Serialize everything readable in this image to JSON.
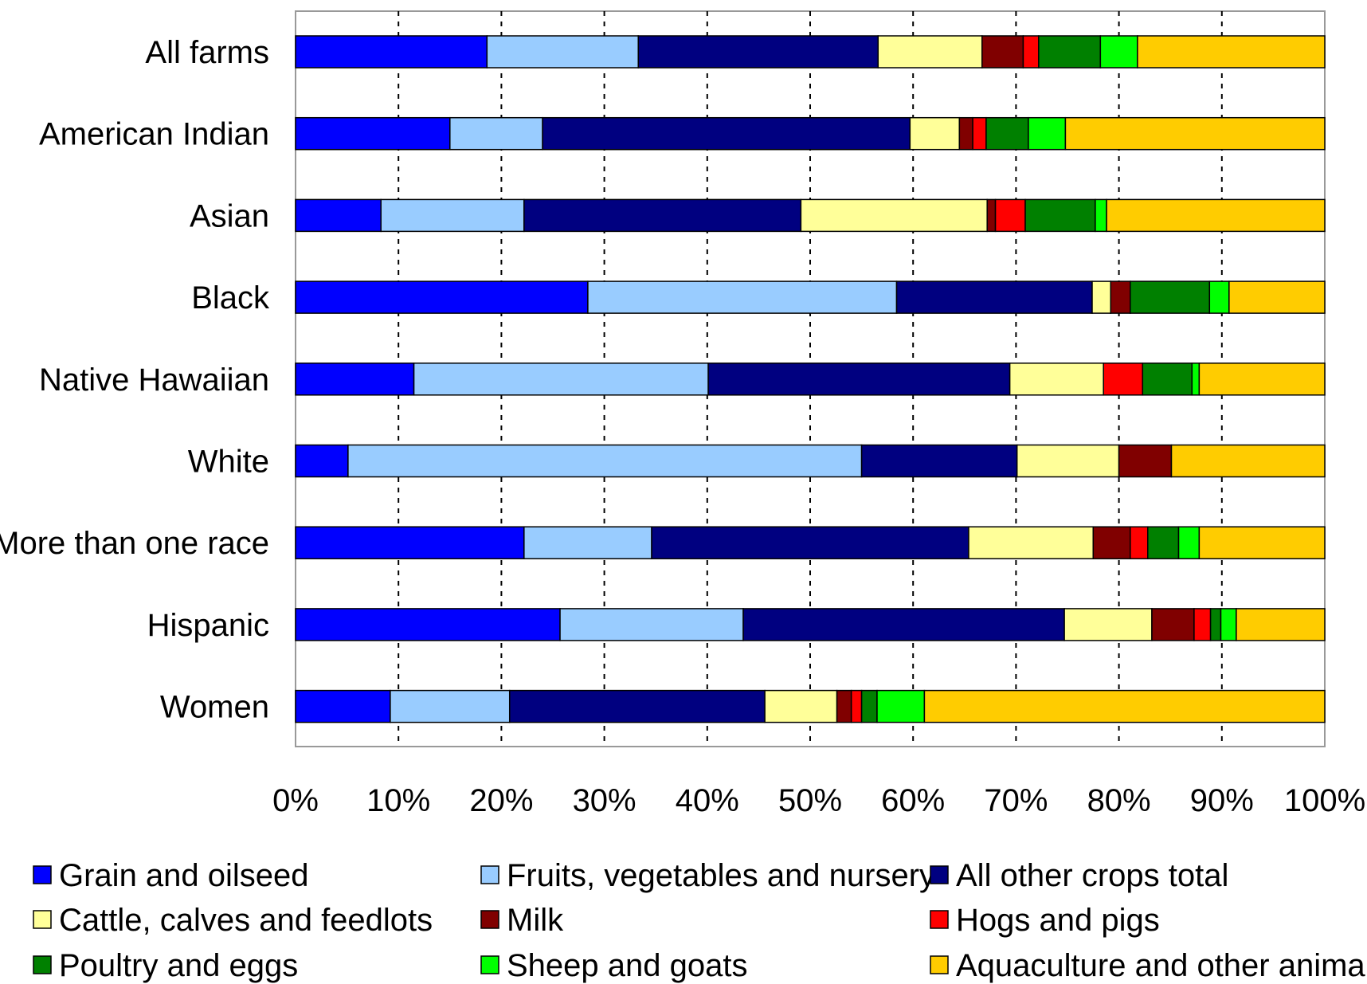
{
  "chart_data": {
    "type": "bar",
    "orientation": "horizontal",
    "stacked": "percent",
    "categories": [
      "All farms",
      "American Indian",
      "Asian",
      "Black",
      "Native Hawaiian",
      "White",
      "More than one race",
      "Hispanic",
      "Women"
    ],
    "series": [
      {
        "name": "Grain and oilseed",
        "color": "#0000FF",
        "values": [
          18.6,
          15.0,
          8.3,
          28.4,
          11.5,
          5.1,
          22.2,
          25.7,
          9.2
        ]
      },
      {
        "name": "Fruits, vegetables and nursery",
        "color": "#99CCFF",
        "values": [
          14.7,
          9.0,
          13.9,
          30.0,
          28.6,
          49.9,
          12.4,
          17.8,
          11.6
        ]
      },
      {
        "name": "All other crops total",
        "color": "#000080",
        "values": [
          23.3,
          35.7,
          26.9,
          19.0,
          29.3,
          15.1,
          30.8,
          31.2,
          24.8
        ]
      },
      {
        "name": "Cattle, calves and feedlots",
        "color": "#FFFF99",
        "values": [
          10.1,
          4.8,
          18.1,
          1.8,
          9.1,
          9.9,
          12.1,
          8.5,
          7.0
        ]
      },
      {
        "name": "Milk",
        "color": "#800000",
        "values": [
          4.0,
          1.3,
          0.8,
          1.9,
          0.0,
          5.1,
          3.6,
          4.1,
          1.4
        ]
      },
      {
        "name": "Hogs and pigs",
        "color": "#FF0000",
        "values": [
          1.5,
          1.3,
          2.9,
          0.0,
          3.8,
          0.0,
          1.7,
          1.6,
          1.0
        ]
      },
      {
        "name": "Poultry and eggs",
        "color": "#008000",
        "values": [
          6.0,
          4.1,
          6.8,
          7.7,
          4.8,
          0.0,
          3.0,
          1.0,
          1.5
        ]
      },
      {
        "name": "Sheep and goats",
        "color": "#00FF00",
        "values": [
          3.6,
          3.6,
          1.1,
          1.9,
          0.7,
          0.0,
          2.0,
          1.5,
          4.6
        ]
      },
      {
        "name": "Aquaculture and other animals",
        "color": "#FFCC00",
        "values": [
          18.2,
          25.2,
          21.2,
          9.3,
          12.2,
          14.9,
          12.2,
          8.6,
          38.9
        ]
      }
    ],
    "x_ticks": [
      "0%",
      "10%",
      "20%",
      "30%",
      "40%",
      "50%",
      "60%",
      "70%",
      "80%",
      "90%",
      "100%"
    ],
    "xlim": [
      0,
      100
    ],
    "grid": "vertical dashed",
    "legend_position": "bottom"
  }
}
